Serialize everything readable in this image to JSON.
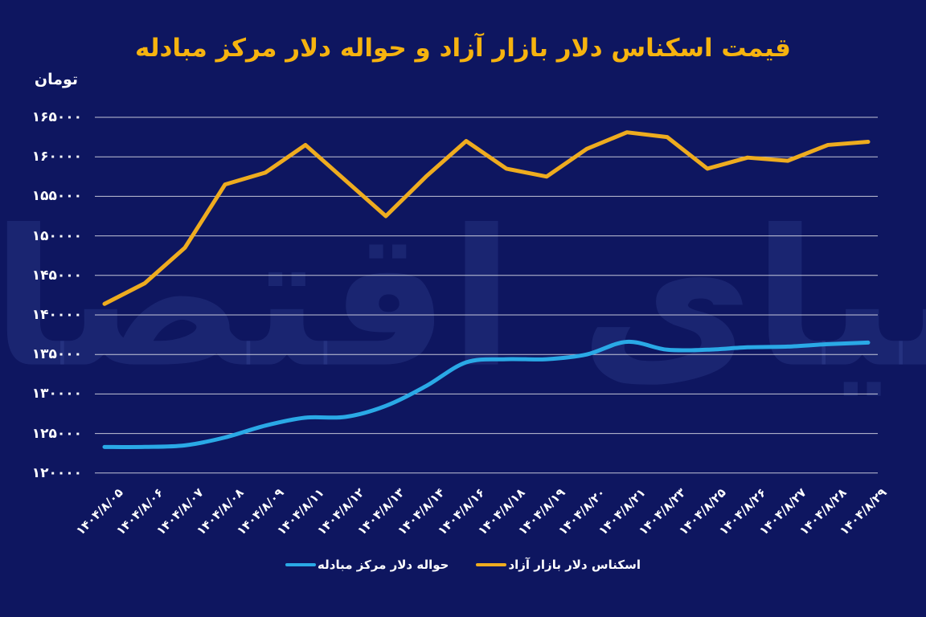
{
  "title": "قیمت اسکناس دلار بازار آزاد و حواله دلار مرکز مبادله",
  "unit_label": "تومان",
  "watermark": "دنیای اقتصاد",
  "colors": {
    "background": "#0e1660",
    "title": "#f6b30f",
    "gridline": "rgba(255,255,255,0.75)",
    "free_market_line": "#eeac1f",
    "exchange_center_line": "#2aa9e6",
    "axis_text": "#ffffff"
  },
  "legend": {
    "items": [
      {
        "label": "حواله دلار مرکز مبادله",
        "color": "#2aa9e6",
        "series": "exchange_center"
      },
      {
        "label": "اسکناس دلار بازار آزاد",
        "color": "#eeac1f",
        "series": "free_market"
      }
    ]
  },
  "chart_data": {
    "type": "line",
    "title": "قیمت اسکناس دلار بازار آزاد و حواله دلار مرکز مبادله",
    "xlabel": "",
    "ylabel": "تومان",
    "ylim": [
      120000,
      165000
    ],
    "grid": true,
    "legend_position": "bottom",
    "x_categories": [
      "۱۴۰۴/۸/۰۵",
      "۱۴۰۴/۸/۰۶",
      "۱۴۰۴/۸/۰۷",
      "۱۴۰۴/۸/۰۸",
      "۱۴۰۴/۸/۰۹",
      "۱۴۰۴/۸/۱۱",
      "۱۴۰۴/۸/۱۲",
      "۱۴۰۴/۸/۱۳",
      "۱۴۰۴/۸/۱۴",
      "۱۴۰۴/۸/۱۶",
      "۱۴۰۴/۸/۱۸",
      "۱۴۰۴/۸/۱۹",
      "۱۴۰۴/۸/۲۰",
      "۱۴۰۴/۸/۲۱",
      "۱۴۰۴/۸/۲۳",
      "۱۴۰۴/۸/۲۵",
      "۱۴۰۴/۸/۲۶",
      "۱۴۰۴/۸/۲۷",
      "۱۴۰۴/۸/۲۸",
      "۱۴۰۴/۸/۲۹"
    ],
    "y_ticks": [
      {
        "label": "۱۶۵۰۰۰",
        "value": 165000
      },
      {
        "label": "۱۶۰۰۰۰",
        "value": 160000
      },
      {
        "label": "۱۵۵۰۰۰",
        "value": 155000
      },
      {
        "label": "۱۵۰۰۰۰",
        "value": 150000
      },
      {
        "label": "۱۴۵۰۰۰",
        "value": 145000
      },
      {
        "label": "۱۴۰۰۰۰",
        "value": 140000
      },
      {
        "label": "۱۳۵۰۰۰",
        "value": 135000
      },
      {
        "label": "۱۳۰۰۰۰",
        "value": 130000
      },
      {
        "label": "۱۲۵۰۰۰",
        "value": 125000
      },
      {
        "label": "۱۲۰۰۰۰",
        "value": 120000
      }
    ],
    "series": [
      {
        "name": "اسکناس دلار بازار آزاد",
        "color": "#eeac1f",
        "smooth": false,
        "values": [
          141400,
          144000,
          148500,
          156500,
          158000,
          161500,
          157000,
          152500,
          157500,
          162000,
          158500,
          157500,
          161000,
          163100,
          162500,
          158500,
          159900,
          159500,
          161500,
          161900
        ]
      },
      {
        "name": "حواله دلار مرکز مبادله",
        "color": "#2aa9e6",
        "smooth": true,
        "values": [
          123300,
          123300,
          123500,
          124500,
          126000,
          127000,
          127100,
          128500,
          131000,
          134000,
          134400,
          134400,
          135000,
          136600,
          135600,
          135600,
          135900,
          136000,
          136300,
          136500
        ]
      }
    ]
  }
}
